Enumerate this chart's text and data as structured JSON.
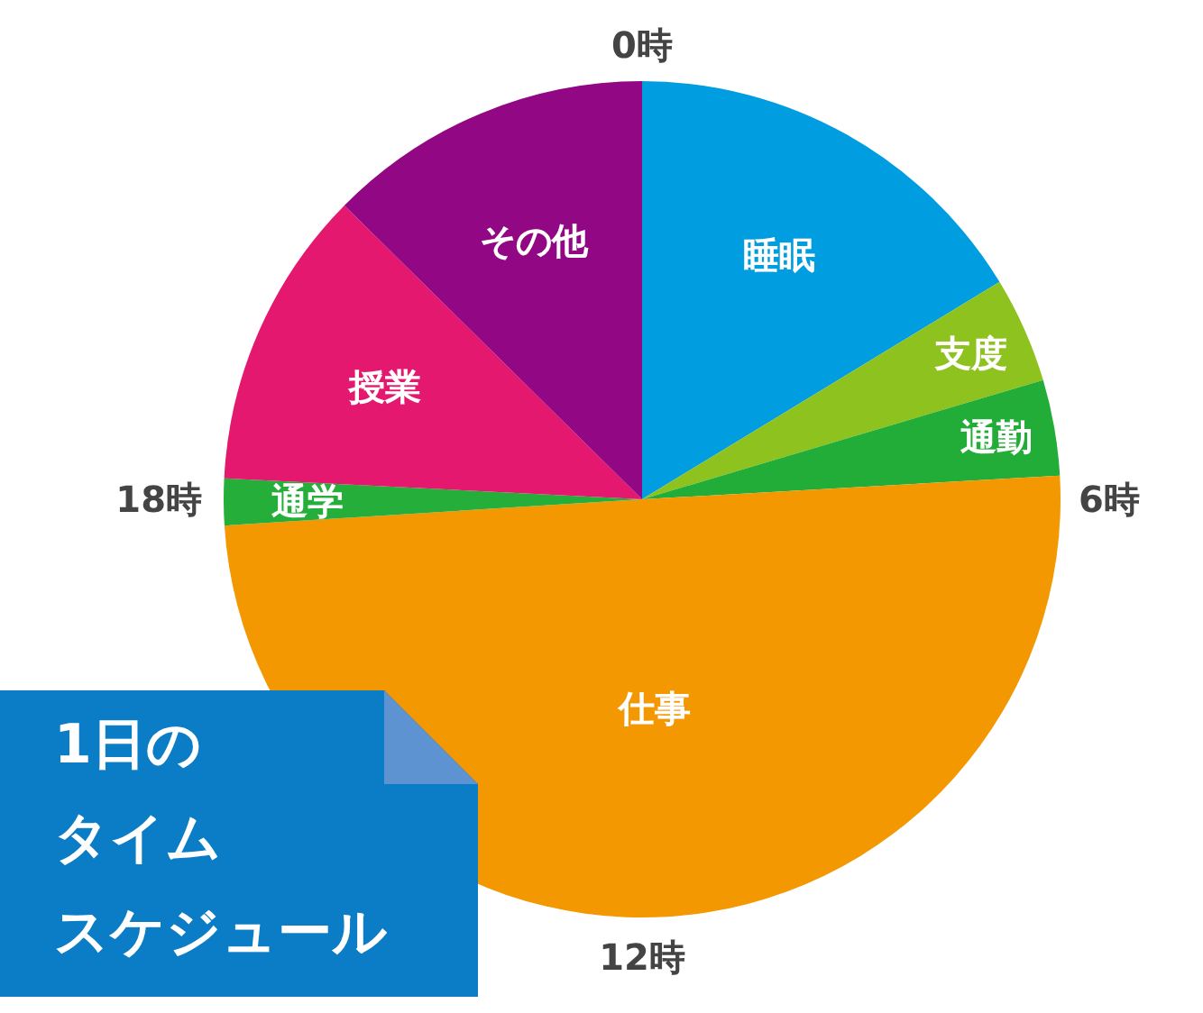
{
  "chart_data": {
    "type": "pie",
    "title": "1日のタイムスケジュール",
    "categories": [
      "睡眠",
      "支度",
      "通勤",
      "仕事",
      "通学",
      "授業",
      "その他"
    ],
    "values": [
      16.3,
      4.1,
      3.7,
      49.9,
      1.8,
      11.6,
      12.6
    ],
    "colors": [
      "#009de0",
      "#8dc21f",
      "#22ac38",
      "#f39800",
      "#26ae3b",
      "#e4186e",
      "#920783"
    ],
    "annotations": [
      "0時",
      "6時",
      "12時",
      "18時"
    ]
  }
}
